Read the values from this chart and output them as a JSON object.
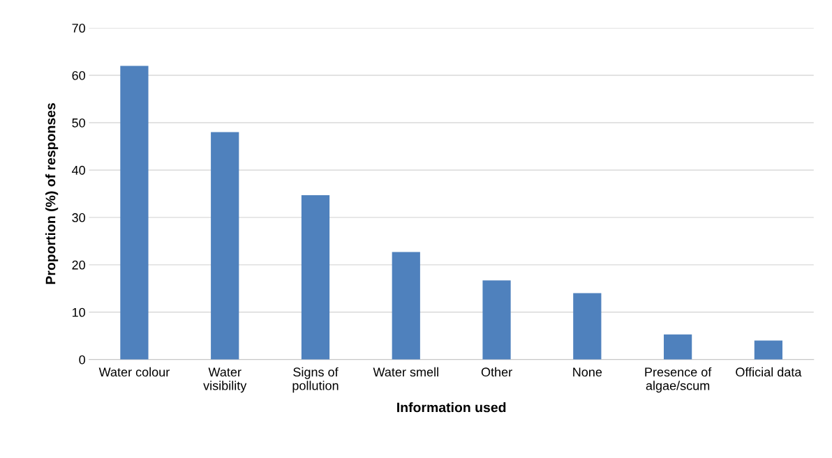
{
  "chart_data": {
    "type": "bar",
    "xlabel": "Information used",
    "ylabel": "Proportion (%) of responses",
    "categories": [
      "Water colour",
      "Water\nvisibility",
      "Signs of\npollution",
      "Water smell",
      "Other",
      "None",
      "Presence of\nalgae/scum",
      "Official data"
    ],
    "values": [
      62,
      48,
      34.7,
      22.7,
      16.7,
      14,
      5.3,
      4
    ],
    "color": "#4f81bd",
    "ylim": [
      0,
      70
    ],
    "yticks": [
      0,
      10,
      20,
      30,
      40,
      50,
      60,
      70
    ],
    "grid": "y",
    "legend": false
  }
}
